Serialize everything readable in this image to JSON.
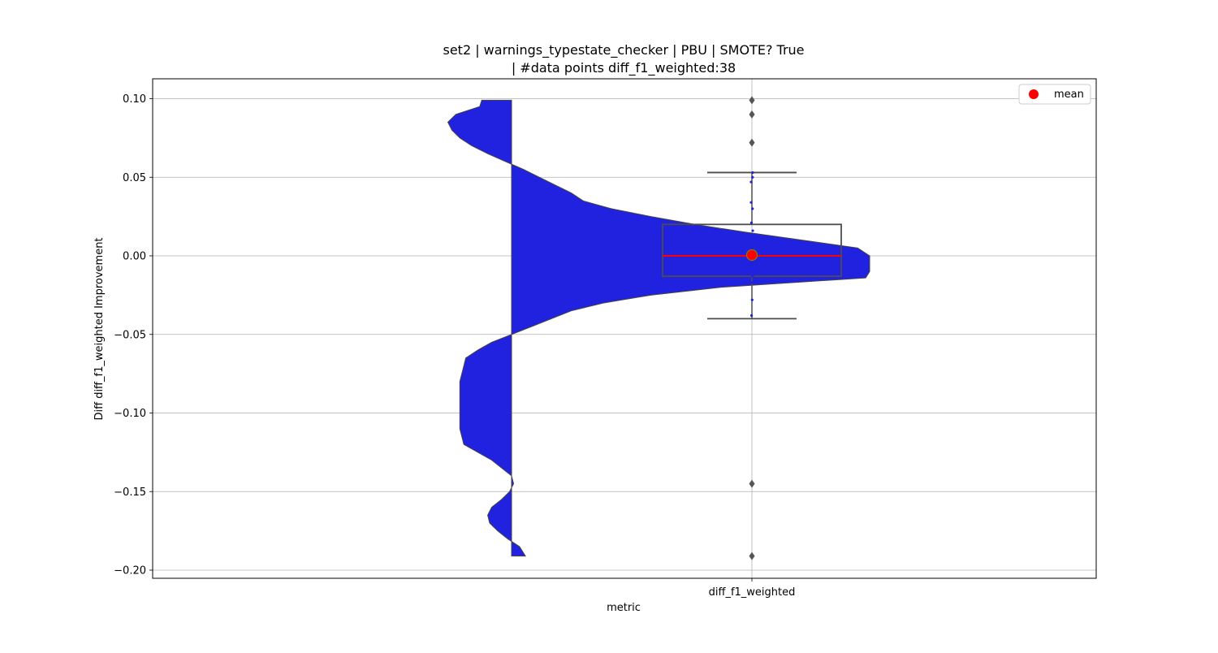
{
  "chart_data": {
    "type": "violin+box",
    "title_line1": "set2 | warnings_typestate_checker | PBU | SMOTE? True",
    "title_line2": "| #data points diff_f1_weighted:38",
    "xlabel": "metric",
    "ylabel": "Diff diff_f1_weighted Improvement",
    "categories": [
      "diff_f1_weighted"
    ],
    "ylim": [
      -0.205,
      0.113
    ],
    "yticks": [
      0.1,
      0.05,
      0.0,
      -0.05,
      -0.1,
      -0.15,
      -0.2
    ],
    "ytick_labels": [
      "0.10",
      "0.05",
      "0.00",
      "−0.05",
      "−0.10",
      "−0.15",
      "−0.20"
    ],
    "grid": true,
    "legend": {
      "entries": [
        "mean"
      ],
      "placement": "top-right"
    },
    "colors": {
      "violin": "#2121e0",
      "box_edge": "#4d4d4d",
      "median": "#ff0000",
      "mean_marker": "#ff0000",
      "mean_edge": "#808000",
      "grid": "#b0b0b0",
      "points": "#2121e0"
    },
    "violin_half": "left",
    "violin_density": [
      [
        0.099,
        0.15
      ],
      [
        0.095,
        0.16
      ],
      [
        0.09,
        0.28
      ],
      [
        0.085,
        0.32
      ],
      [
        0.08,
        0.3
      ],
      [
        0.075,
        0.26
      ],
      [
        0.07,
        0.2
      ],
      [
        0.065,
        0.12
      ],
      [
        0.06,
        0.03
      ],
      [
        0.055,
        -0.06
      ],
      [
        0.05,
        -0.14
      ],
      [
        0.045,
        -0.22
      ],
      [
        0.04,
        -0.3
      ],
      [
        0.035,
        -0.36
      ],
      [
        0.03,
        -0.5
      ],
      [
        0.025,
        -0.7
      ],
      [
        0.02,
        -0.92
      ],
      [
        0.015,
        -1.18
      ],
      [
        0.01,
        -1.46
      ],
      [
        0.005,
        -1.74
      ],
      [
        0.0,
        -1.8
      ],
      [
        -0.005,
        -1.8
      ],
      [
        -0.01,
        -1.8
      ],
      [
        -0.014,
        -1.78
      ],
      [
        -0.02,
        -1.05
      ],
      [
        -0.025,
        -0.7
      ],
      [
        -0.03,
        -0.46
      ],
      [
        -0.035,
        -0.3
      ],
      [
        -0.04,
        -0.2
      ],
      [
        -0.045,
        -0.1
      ],
      [
        -0.05,
        0.0
      ],
      [
        -0.055,
        0.1
      ],
      [
        -0.06,
        0.17
      ],
      [
        -0.065,
        0.23
      ],
      [
        -0.07,
        0.24
      ],
      [
        -0.08,
        0.26
      ],
      [
        -0.09,
        0.26
      ],
      [
        -0.1,
        0.26
      ],
      [
        -0.11,
        0.26
      ],
      [
        -0.12,
        0.24
      ],
      [
        -0.13,
        0.1
      ],
      [
        -0.14,
        0.0
      ],
      [
        -0.145,
        -0.01
      ],
      [
        -0.15,
        0.01
      ],
      [
        -0.155,
        0.05
      ],
      [
        -0.16,
        0.1
      ],
      [
        -0.165,
        0.12
      ],
      [
        -0.17,
        0.11
      ],
      [
        -0.175,
        0.07
      ],
      [
        -0.18,
        0.02
      ],
      [
        -0.185,
        -0.04
      ],
      [
        -0.191,
        -0.07
      ]
    ],
    "box": {
      "q1": -0.013,
      "median": 0.0,
      "q3": 0.02,
      "whisker_low": -0.04,
      "whisker_high": 0.053,
      "mean": 0.0005
    },
    "outliers": [
      0.099,
      0.09,
      0.072,
      -0.145,
      -0.191
    ],
    "points": [
      0.053,
      0.05,
      0.047,
      0.034,
      0.03,
      0.021,
      0.016,
      0.013,
      0.009,
      0.005,
      0.003,
      0.001,
      0.0,
      -0.002,
      -0.005,
      -0.008,
      -0.01,
      -0.013,
      -0.017,
      -0.028,
      -0.038
    ]
  }
}
